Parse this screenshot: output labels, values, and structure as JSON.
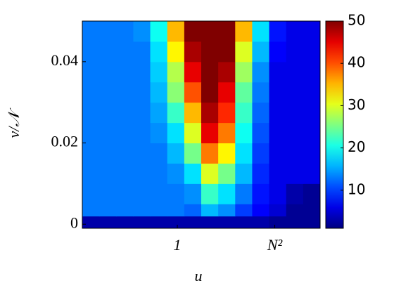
{
  "chart_data": {
    "type": "heatmap",
    "xlabel": "u",
    "ylabel": "ν/𝒩",
    "x_bins": [
      -1.95,
      -1.6014,
      -1.2528,
      -0.9042,
      -0.5556,
      -0.207,
      0.1416,
      0.4902,
      0.8388,
      1.1874,
      1.536,
      1.8846,
      2.2332,
      2.5818,
      2.9304
    ],
    "y_bins": [
      -0.001,
      0.002,
      0.005,
      0.01,
      0.015,
      0.02,
      0.025,
      0.03,
      0.035,
      0.04,
      0.045,
      0.05
    ],
    "z": [
      [
        3,
        3,
        3,
        3,
        3,
        3,
        3,
        3,
        3,
        3,
        3,
        2,
        2,
        2
      ],
      [
        13,
        13,
        13,
        13,
        13,
        13,
        12,
        16,
        14,
        10,
        7,
        5,
        2,
        2
      ],
      [
        13,
        13,
        13,
        13,
        13,
        13,
        14,
        22,
        18,
        13,
        8,
        6,
        3,
        2
      ],
      [
        13,
        13,
        13,
        13,
        13,
        14,
        18,
        30,
        25,
        16,
        9,
        6,
        6,
        6
      ],
      [
        13,
        13,
        13,
        13,
        13,
        16,
        25,
        38,
        32,
        18,
        10,
        6,
        6,
        6
      ],
      [
        13,
        13,
        13,
        13,
        14,
        18,
        30,
        45,
        38,
        20,
        11,
        6,
        6,
        6
      ],
      [
        13,
        13,
        13,
        13,
        15,
        22,
        35,
        48,
        42,
        22,
        12,
        6,
        6,
        6
      ],
      [
        13,
        13,
        13,
        13,
        16,
        26,
        40,
        50,
        45,
        24,
        13,
        6,
        6,
        6
      ],
      [
        13,
        13,
        13,
        13,
        17,
        28,
        45,
        50,
        48,
        27,
        14,
        6,
        6,
        6
      ],
      [
        13,
        13,
        13,
        13,
        18,
        32,
        48,
        50,
        50,
        30,
        16,
        7,
        6,
        6
      ],
      [
        13,
        13,
        13,
        14,
        20,
        35,
        50,
        50,
        50,
        35,
        18,
        8,
        6,
        6
      ]
    ],
    "xlim": [
      -1.95,
      2.9304
    ],
    "ylim": [
      -0.001,
      0.05
    ],
    "xticks": [
      {
        "value": 0,
        "label": "1"
      },
      {
        "value": 2,
        "label": "N²"
      }
    ],
    "yticks": [
      0,
      0.02,
      0.04
    ],
    "clim": [
      1,
      50
    ],
    "cticks": [
      10,
      20,
      30,
      40,
      50
    ],
    "colormap": "jet"
  }
}
